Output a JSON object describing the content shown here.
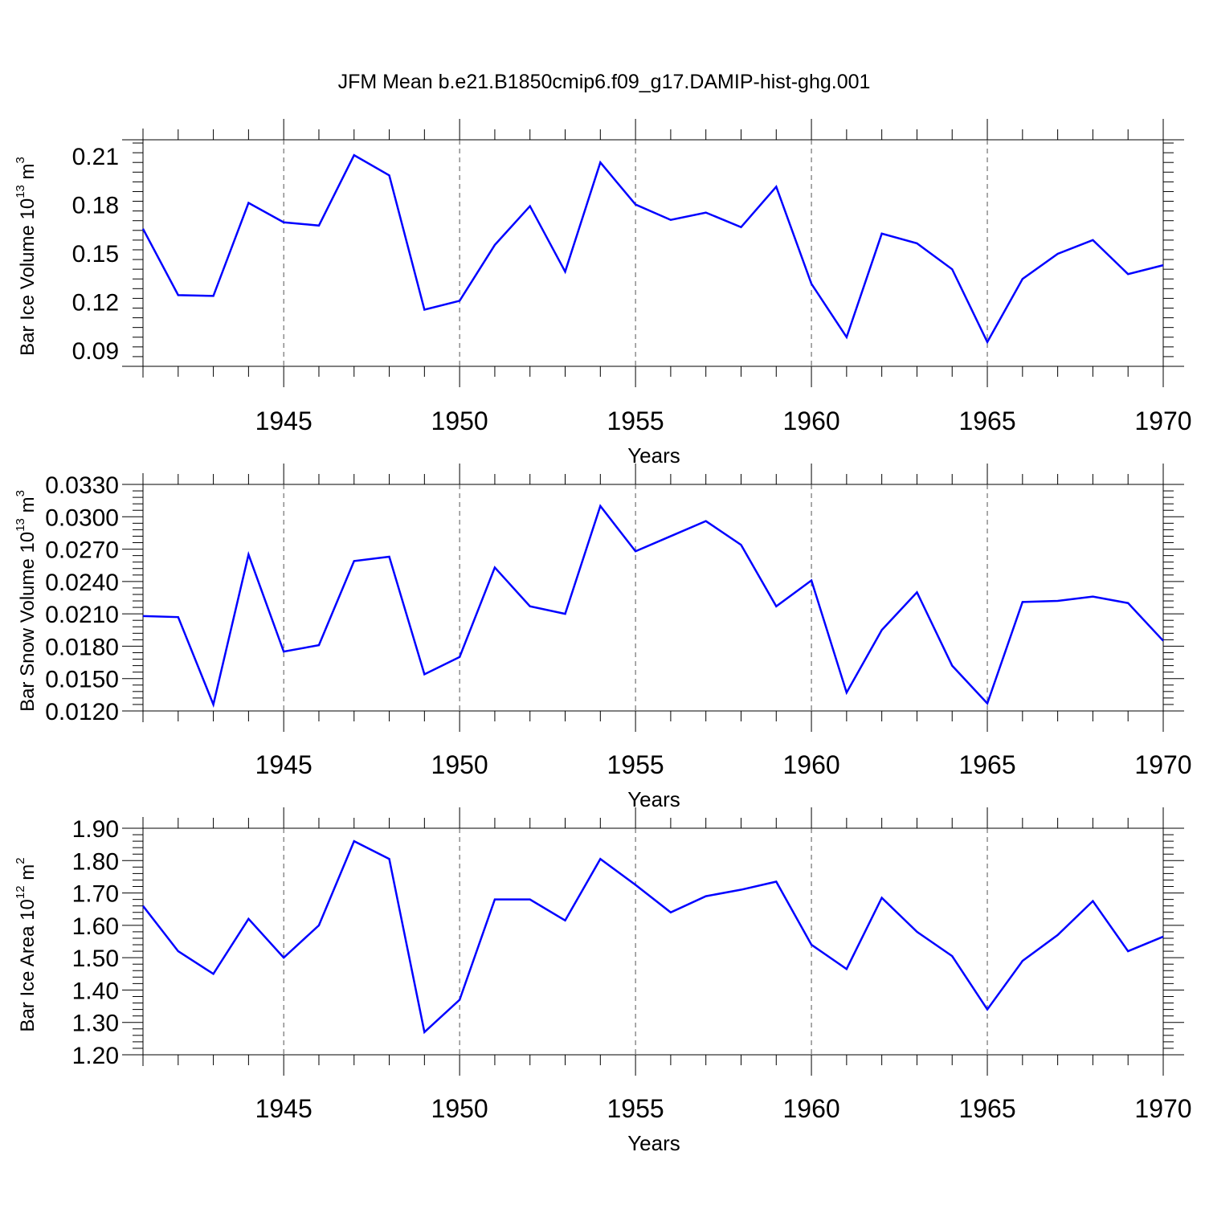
{
  "title": "JFM Mean b.e21.B1850cmip6.f09_g17.DAMIP-hist-ghg.001",
  "line_color": "#0000ff",
  "chart_data": [
    {
      "type": "line",
      "ylabel": "Bar Ice Volume 10",
      "ylabel_exp": "13",
      "ylabel_unit": " m",
      "ylabel_unit_exp": "3",
      "xlabel": "Years",
      "xlim": [
        1941,
        1970
      ],
      "ylim": [
        0.08,
        0.22
      ],
      "yticks": [
        0.09,
        0.12,
        0.15,
        0.18,
        0.21
      ],
      "ytick_labels": [
        "0.09",
        "0.12",
        "0.15",
        "0.18",
        "0.21"
      ],
      "xticks": [
        1945,
        1950,
        1955,
        1960,
        1965,
        1970
      ],
      "xtick_labels": [
        "1945",
        "1950",
        "1955",
        "1960",
        "1965",
        "1970"
      ],
      "x": [
        1941,
        1942,
        1943,
        1944,
        1945,
        1946,
        1947,
        1948,
        1949,
        1950,
        1951,
        1952,
        1953,
        1954,
        1955,
        1956,
        1957,
        1958,
        1959,
        1960,
        1961,
        1962,
        1963,
        1964,
        1965,
        1966,
        1967,
        1968,
        1969,
        1970
      ],
      "y": [
        0.165,
        0.124,
        0.1235,
        0.181,
        0.169,
        0.167,
        0.2105,
        0.198,
        0.115,
        0.1205,
        0.155,
        0.179,
        0.1385,
        0.206,
        0.18,
        0.1705,
        0.175,
        0.166,
        0.191,
        0.131,
        0.098,
        0.162,
        0.156,
        0.14,
        0.095,
        0.134,
        0.1495,
        0.158,
        0.137,
        0.1425
      ]
    },
    {
      "type": "line",
      "ylabel": "Bar Snow Volume 10",
      "ylabel_exp": "13",
      "ylabel_unit": " m",
      "ylabel_unit_exp": "3",
      "xlabel": "Years",
      "xlim": [
        1941,
        1970
      ],
      "ylim": [
        0.012,
        0.033
      ],
      "yticks": [
        0.012,
        0.015,
        0.018,
        0.021,
        0.024,
        0.027,
        0.03,
        0.033
      ],
      "ytick_labels": [
        "0.0120",
        "0.0150",
        "0.0180",
        "0.0210",
        "0.0240",
        "0.0270",
        "0.0300",
        "0.0330"
      ],
      "xticks": [
        1945,
        1950,
        1955,
        1960,
        1965,
        1970
      ],
      "xtick_labels": [
        "1945",
        "1950",
        "1955",
        "1960",
        "1965",
        "1970"
      ],
      "x": [
        1941,
        1942,
        1943,
        1944,
        1945,
        1946,
        1947,
        1948,
        1949,
        1950,
        1951,
        1952,
        1953,
        1954,
        1955,
        1956,
        1957,
        1958,
        1959,
        1960,
        1961,
        1962,
        1963,
        1964,
        1965,
        1966,
        1967,
        1968,
        1969,
        1970
      ],
      "y": [
        0.0208,
        0.0207,
        0.0126,
        0.0265,
        0.0175,
        0.0181,
        0.0259,
        0.0263,
        0.0154,
        0.017,
        0.0253,
        0.0217,
        0.021,
        0.031,
        0.0268,
        0.0282,
        0.0296,
        0.0274,
        0.0217,
        0.0241,
        0.0137,
        0.0195,
        0.023,
        0.0162,
        0.0127,
        0.0221,
        0.0222,
        0.0226,
        0.022,
        0.0185
      ]
    },
    {
      "type": "line",
      "ylabel": "Bar Ice Area 10",
      "ylabel_exp": "12",
      "ylabel_unit": " m",
      "ylabel_unit_exp": "2",
      "xlabel": "Years",
      "xlim": [
        1941,
        1970
      ],
      "ylim": [
        1.2,
        1.9
      ],
      "yticks": [
        1.2,
        1.3,
        1.4,
        1.5,
        1.6,
        1.7,
        1.8,
        1.9
      ],
      "ytick_labels": [
        "1.20",
        "1.30",
        "1.40",
        "1.50",
        "1.60",
        "1.70",
        "1.80",
        "1.90"
      ],
      "xticks": [
        1945,
        1950,
        1955,
        1960,
        1965,
        1970
      ],
      "xtick_labels": [
        "1945",
        "1950",
        "1955",
        "1960",
        "1965",
        "1970"
      ],
      "x": [
        1941,
        1942,
        1943,
        1944,
        1945,
        1946,
        1947,
        1948,
        1949,
        1950,
        1951,
        1952,
        1953,
        1954,
        1955,
        1956,
        1957,
        1958,
        1959,
        1960,
        1961,
        1962,
        1963,
        1964,
        1965,
        1966,
        1967,
        1968,
        1969,
        1970
      ],
      "y": [
        1.66,
        1.52,
        1.45,
        1.62,
        1.5,
        1.6,
        1.86,
        1.805,
        1.27,
        1.37,
        1.68,
        1.68,
        1.615,
        1.805,
        1.725,
        1.64,
        1.69,
        1.71,
        1.735,
        1.54,
        1.465,
        1.685,
        1.58,
        1.505,
        1.34,
        1.49,
        1.57,
        1.675,
        1.52,
        1.565
      ]
    }
  ]
}
